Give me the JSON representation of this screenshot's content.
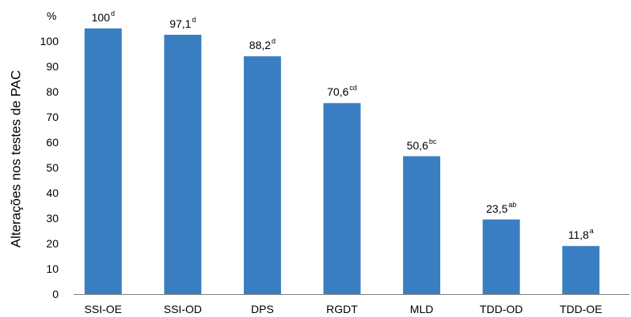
{
  "chart_data": {
    "type": "bar",
    "ylabel": "Alterações nos testes de PAC",
    "unit": "%",
    "ylim": [
      0,
      100
    ],
    "yticks": [
      0,
      10,
      20,
      30,
      40,
      50,
      60,
      70,
      80,
      90,
      100
    ],
    "categories": [
      "SSI-OE",
      "SSI-OD",
      "DPS",
      "RGDT",
      "MLD",
      "TDD-OD",
      "TDD-OE"
    ],
    "values": [
      100,
      97.1,
      88.2,
      70.6,
      50.6,
      23.5,
      11.8
    ],
    "bar_heights": [
      105,
      102.5,
      94,
      75.5,
      54.5,
      29.5,
      19
    ],
    "labels": [
      "100",
      "97,1",
      "88,2",
      "70,6",
      "50,6",
      "23,5",
      "11,8"
    ],
    "superscripts": [
      "d",
      "d",
      "d",
      "cd",
      "bc",
      "ab",
      "a"
    ],
    "bar_color": "#3a7ec2",
    "grid": false
  }
}
